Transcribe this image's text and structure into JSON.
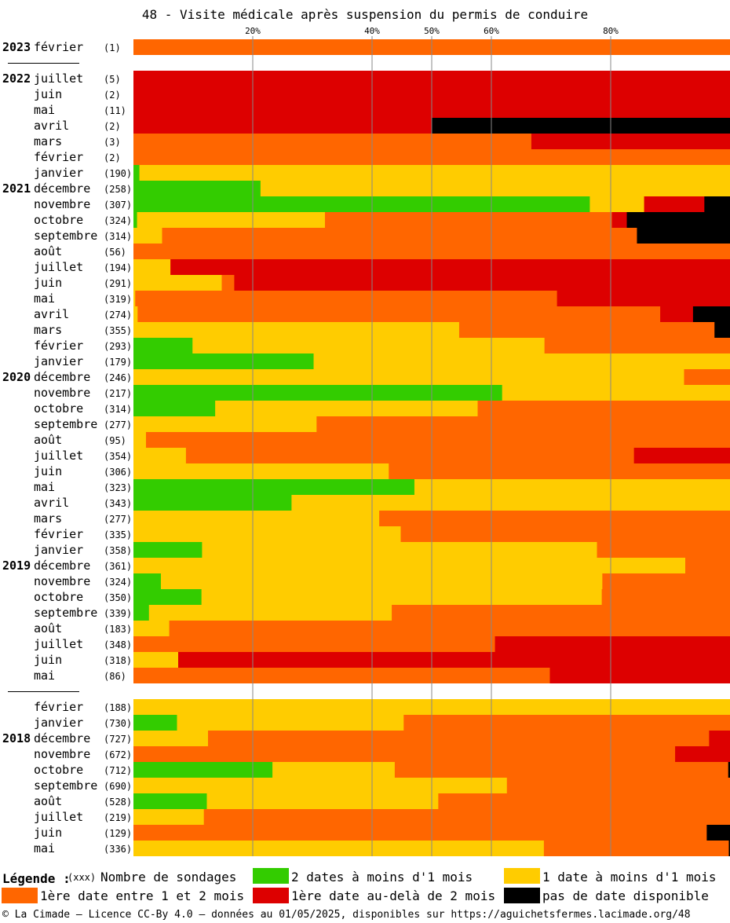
{
  "chart_data": {
    "type": "bar",
    "orientation": "horizontal-stacked-100",
    "title": "48 - Visite médicale après suspension du permis de conduire",
    "x_ticks": [
      20,
      40,
      50,
      60,
      80
    ],
    "x_tick_labels": [
      "20%",
      "40%",
      "50%",
      "60%",
      "80%"
    ],
    "xlim": [
      0,
      100
    ],
    "colors": {
      "green": "#33cc00",
      "yellow": "#ffcc00",
      "orange": "#ff6600",
      "red": "#dd0000",
      "black": "#000000",
      "grid": "#888888"
    },
    "series": [
      {
        "key": "green",
        "name": "2 dates à moins d'1 mois"
      },
      {
        "key": "yellow",
        "name": "1 date à moins d'1 mois"
      },
      {
        "key": "orange",
        "name": "1ère date entre 1 et 2 mois"
      },
      {
        "key": "red",
        "name": "1ère date au-delà de 2 mois"
      },
      {
        "key": "black",
        "name": "pas de date disponible"
      }
    ],
    "groups": [
      {
        "rows": [
          {
            "year": "2023",
            "month": "février",
            "count": "(1)",
            "values": [
              0,
              0,
              100,
              0,
              0
            ]
          }
        ]
      },
      {
        "rows": [
          {
            "year": "2022",
            "month": "juillet",
            "count": "(5)",
            "values": [
              0,
              0,
              0,
              100,
              0
            ]
          },
          {
            "year": "",
            "month": "juin",
            "count": "(2)",
            "values": [
              0,
              0,
              0,
              100,
              0
            ]
          },
          {
            "year": "",
            "month": "mai",
            "count": "(11)",
            "values": [
              0,
              0,
              0,
              100,
              0
            ]
          },
          {
            "year": "",
            "month": "avril",
            "count": "(2)",
            "values": [
              0,
              0,
              0,
              50,
              50
            ]
          },
          {
            "year": "",
            "month": "mars",
            "count": "(3)",
            "values": [
              0,
              0,
              66.7,
              33.3,
              0
            ]
          },
          {
            "year": "",
            "month": "février",
            "count": "(2)",
            "values": [
              0,
              0,
              100,
              0,
              0
            ]
          },
          {
            "year": "",
            "month": "janvier",
            "count": "(190)",
            "values": [
              1,
              99,
              0,
              0,
              0
            ]
          },
          {
            "year": "2021",
            "month": "décembre",
            "count": "(258)",
            "values": [
              21.3,
              78.7,
              0,
              0,
              0
            ]
          },
          {
            "year": "",
            "month": "novembre",
            "count": "(307)",
            "values": [
              76.5,
              9.1,
              0,
              10.1,
              4.3
            ]
          },
          {
            "year": "",
            "month": "octobre",
            "count": "(324)",
            "values": [
              0.6,
              31.5,
              48.1,
              2.5,
              17.3
            ]
          },
          {
            "year": "",
            "month": "septembre",
            "count": "(314)",
            "values": [
              0,
              4.8,
              79.6,
              0,
              15.6
            ]
          },
          {
            "year": "",
            "month": "août",
            "count": "(56)",
            "values": [
              0,
              0,
              100,
              0,
              0
            ]
          },
          {
            "year": "",
            "month": "juillet",
            "count": "(194)",
            "values": [
              0,
              6.2,
              0,
              93.8,
              0
            ]
          },
          {
            "year": "",
            "month": "juin",
            "count": "(291)",
            "values": [
              0,
              14.8,
              2.1,
              83.1,
              0
            ]
          },
          {
            "year": "",
            "month": "mai",
            "count": "(319)",
            "values": [
              0,
              0.3,
              70.7,
              29,
              0
            ]
          },
          {
            "year": "",
            "month": "avril",
            "count": "(274)",
            "values": [
              0,
              0.7,
              87.6,
              5.5,
              6.2
            ]
          },
          {
            "year": "",
            "month": "mars",
            "count": "(355)",
            "values": [
              0,
              54.6,
              42.8,
              0,
              2.6
            ]
          },
          {
            "year": "",
            "month": "février",
            "count": "(293)",
            "values": [
              9.9,
              59,
              31.1,
              0,
              0
            ]
          },
          {
            "year": "",
            "month": "janvier",
            "count": "(179)",
            "values": [
              30.2,
              69.8,
              0,
              0,
              0
            ]
          },
          {
            "year": "2020",
            "month": "décembre",
            "count": "(246)",
            "values": [
              0,
              92.3,
              7.7,
              0,
              0
            ]
          },
          {
            "year": "",
            "month": "novembre",
            "count": "(217)",
            "values": [
              61.8,
              38.2,
              0,
              0,
              0
            ]
          },
          {
            "year": "",
            "month": "octobre",
            "count": "(314)",
            "values": [
              13.7,
              44,
              42.3,
              0,
              0
            ]
          },
          {
            "year": "",
            "month": "septembre",
            "count": "(277)",
            "values": [
              0,
              30.7,
              69.3,
              0,
              0
            ]
          },
          {
            "year": "",
            "month": "août",
            "count": "(95)",
            "values": [
              0,
              2.1,
              97.9,
              0,
              0
            ]
          },
          {
            "year": "",
            "month": "juillet",
            "count": "(354)",
            "values": [
              0,
              8.8,
              75.1,
              16.1,
              0
            ]
          },
          {
            "year": "",
            "month": "juin",
            "count": "(306)",
            "values": [
              0,
              42.8,
              57.2,
              0,
              0
            ]
          },
          {
            "year": "",
            "month": "mai",
            "count": "(323)",
            "values": [
              47.1,
              52.9,
              0,
              0,
              0
            ]
          },
          {
            "year": "",
            "month": "avril",
            "count": "(343)",
            "values": [
              26.5,
              73.5,
              0,
              0,
              0
            ]
          },
          {
            "year": "",
            "month": "mars",
            "count": "(277)",
            "values": [
              0,
              41.2,
              58.8,
              0,
              0
            ]
          },
          {
            "year": "",
            "month": "février",
            "count": "(335)",
            "values": [
              0,
              44.8,
              55.2,
              0,
              0
            ]
          },
          {
            "year": "",
            "month": "janvier",
            "count": "(358)",
            "values": [
              11.5,
              66.2,
              22.3,
              0,
              0
            ]
          },
          {
            "year": "2019",
            "month": "décembre",
            "count": "(361)",
            "values": [
              0,
              92.5,
              7.5,
              0,
              0
            ]
          },
          {
            "year": "",
            "month": "novembre",
            "count": "(324)",
            "values": [
              4.6,
              74,
              21.4,
              0,
              0
            ]
          },
          {
            "year": "",
            "month": "octobre",
            "count": "(350)",
            "values": [
              11.4,
              67.1,
              21.5,
              0,
              0
            ]
          },
          {
            "year": "",
            "month": "septembre",
            "count": "(339)",
            "values": [
              2.6,
              40.7,
              56.7,
              0,
              0
            ]
          },
          {
            "year": "",
            "month": "août",
            "count": "(183)",
            "values": [
              0,
              6,
              94,
              0,
              0
            ]
          },
          {
            "year": "",
            "month": "juillet",
            "count": "(348)",
            "values": [
              0,
              0,
              60.6,
              39.4,
              0
            ]
          },
          {
            "year": "",
            "month": "juin",
            "count": "(318)",
            "values": [
              0,
              7.5,
              0,
              92.5,
              0
            ]
          },
          {
            "year": "",
            "month": "mai",
            "count": "(86)",
            "values": [
              0,
              0,
              69.8,
              30.2,
              0
            ]
          }
        ]
      },
      {
        "rows": [
          {
            "year": "",
            "month": "février",
            "count": "(188)",
            "values": [
              0,
              100,
              0,
              0,
              0
            ]
          },
          {
            "year": "",
            "month": "janvier",
            "count": "(730)",
            "values": [
              7.3,
              38,
              54.7,
              0,
              0
            ]
          },
          {
            "year": "2018",
            "month": "décembre",
            "count": "(727)",
            "values": [
              0,
              12.5,
              84,
              3.5,
              0
            ]
          },
          {
            "year": "",
            "month": "novembre",
            "count": "(672)",
            "values": [
              0,
              0,
              90.8,
              9.2,
              0
            ]
          },
          {
            "year": "",
            "month": "octobre",
            "count": "(712)",
            "values": [
              23.3,
              20.5,
              55.9,
              0,
              0.3
            ]
          },
          {
            "year": "",
            "month": "septembre",
            "count": "(690)",
            "values": [
              0,
              62.6,
              37.4,
              0,
              0
            ]
          },
          {
            "year": "",
            "month": "août",
            "count": "(528)",
            "values": [
              12.3,
              38.8,
              48.9,
              0,
              0
            ]
          },
          {
            "year": "",
            "month": "juillet",
            "count": "(219)",
            "values": [
              0,
              11.8,
              88.2,
              0,
              0
            ]
          },
          {
            "year": "",
            "month": "juin",
            "count": "(129)",
            "values": [
              0,
              0,
              96.1,
              0,
              3.9
            ]
          },
          {
            "year": "",
            "month": "mai",
            "count": "(336)",
            "values": [
              0,
              68.8,
              31,
              0,
              0.2
            ]
          }
        ]
      }
    ]
  },
  "legend": {
    "title": "Légende :",
    "count_sample": "(xxx)",
    "count_label": "Nombre de sondages"
  },
  "footer": "© La Cimade — Licence CC-By 4.0 — données au 01/05/2025, disponibles sur https://aguichetsfermes.lacimade.org/48"
}
